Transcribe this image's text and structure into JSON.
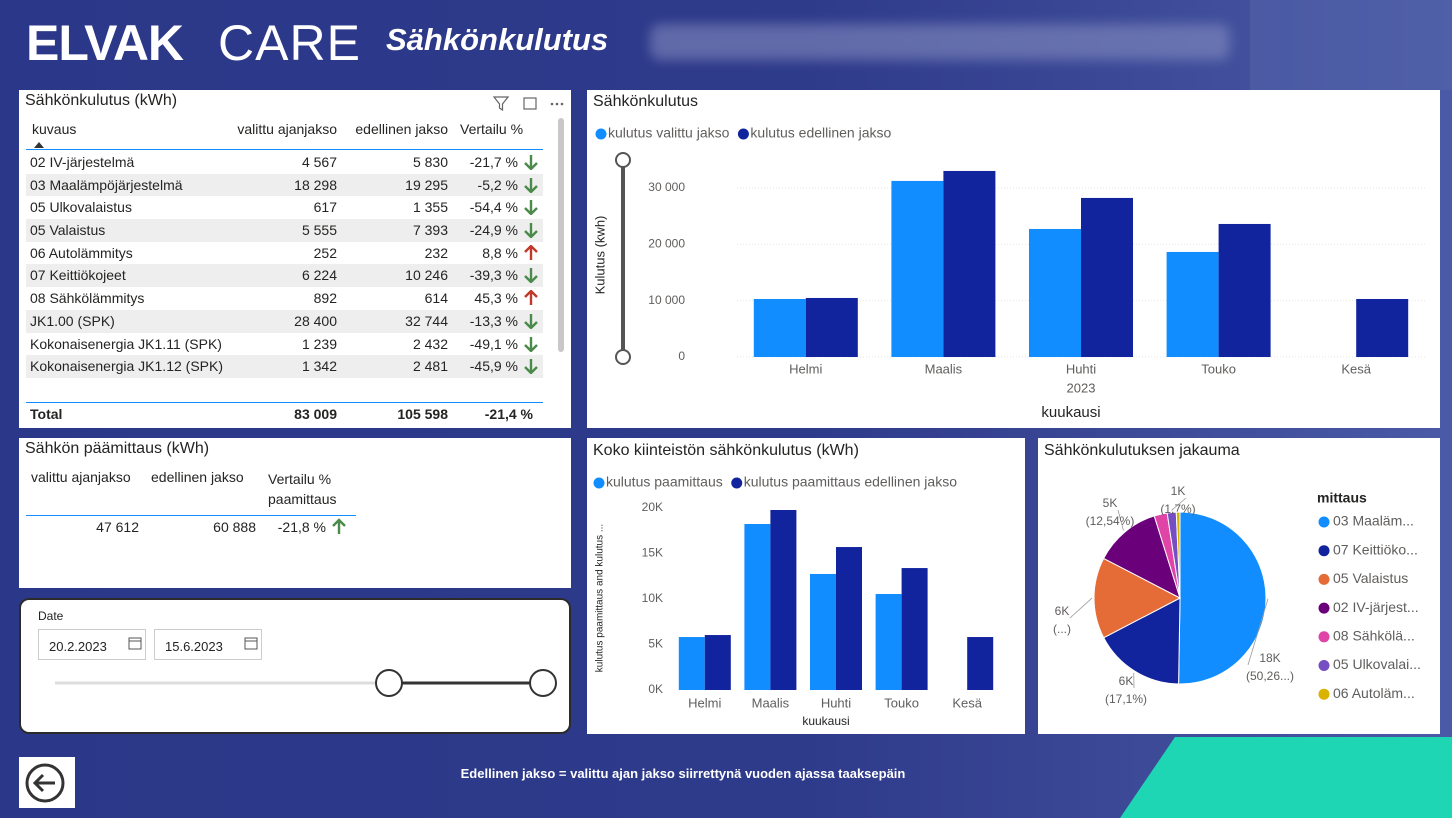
{
  "header": {
    "brand": "ELVAK",
    "product": "CARE",
    "title": "Sähkönkulutus"
  },
  "consumption_table": {
    "title": "Sähkönkulutus (kWh)",
    "columns": [
      "kuvaus",
      "valittu ajanjakso",
      "edellinen jakso",
      "Vertailu %"
    ],
    "rows": [
      [
        "02 IV-järjestelmä",
        "4 567",
        "5 830",
        "-21,7 %"
      ],
      [
        "03 Maalämpöjärjestelmä",
        "18 298",
        "19 295",
        "-5,2 %"
      ],
      [
        "05 Ulkovalaistus",
        "617",
        "1 355",
        "-54,4 %"
      ],
      [
        "05 Valaistus",
        "5 555",
        "7 393",
        "-24,9 %"
      ],
      [
        "06 Autolämmitys",
        "252",
        "232",
        "8,8 %"
      ],
      [
        "07 Keittiökojeet",
        "6 224",
        "10 246",
        "-39,3 %"
      ],
      [
        "08 Sähkölämmitys",
        "892",
        "614",
        "45,3 %"
      ],
      [
        "JK1.00 (SPK)",
        "28 400",
        "32 744",
        "-13,3 %"
      ],
      [
        "Kokonaisenergia JK1.11 (SPK)",
        "1 239",
        "2 432",
        "-49,1 %"
      ],
      [
        "Kokonaisenergia JK1.12 (SPK)",
        "1 342",
        "2 481",
        "-45,9 %"
      ]
    ],
    "total": [
      "Total",
      "83 009",
      "105 598",
      "-21,4 %"
    ]
  },
  "main_meter_table": {
    "title": "Sähkön päämittaus (kWh)",
    "columns": [
      "valittu ajanjakso",
      "edellinen jakso",
      "Vertailu % paamittaus"
    ],
    "row": [
      "47 612",
      "60 888",
      "-21,8 %"
    ]
  },
  "date_slicer": {
    "label": "Date",
    "start": "20.2.2023",
    "end": "15.6.2023"
  },
  "footer": "Edellinen jakso = valittu ajan jakso siirrettynä vuoden ajassa taaksepäin",
  "chart_data": [
    {
      "type": "bar",
      "title": "Sähkönkulutus",
      "categories": [
        "Helmi",
        "Maalis",
        "Huhti",
        "Touko",
        "Kesä"
      ],
      "x_group": "2023",
      "xlabel": "kuukausi",
      "ylabel": "Kulutus (kwh)",
      "series": [
        {
          "name": "kulutus valittu jakso",
          "color": "#118dff",
          "values": [
            10300,
            31260,
            22730,
            18650,
            null
          ]
        },
        {
          "name": "kulutus edellinen jakso",
          "color": "#12239e",
          "values": [
            10480,
            33030,
            28240,
            23620,
            10300
          ]
        }
      ],
      "ylim": [
        0,
        34000
      ],
      "yticks": [
        0,
        {
          "value": 10000,
          "label": "10 000"
        },
        {
          "value": 20000,
          "label": "20 000"
        },
        {
          "value": 30000,
          "label": "30 000"
        }
      ],
      "grid": true,
      "legend": "top-left"
    },
    {
      "type": "bar",
      "title": "Koko kiinteistön sähkönkulutus (kWh)",
      "categories": [
        "Helmi",
        "Maalis",
        "Huhti",
        "Touko",
        "Kesä"
      ],
      "xlabel": "kuukausi",
      "ylabel": "kulutus paamittaus and kulutus ...",
      "series": [
        {
          "name": "kulutus paamittaus",
          "color": "#118dff",
          "values": [
            5820,
            18240,
            12750,
            10550,
            null
          ]
        },
        {
          "name": "kulutus paamittaus edellinen jakso",
          "color": "#12239e",
          "values": [
            6040,
            19780,
            15710,
            13400,
            5820
          ]
        }
      ],
      "ylim": [
        0,
        20000
      ],
      "yticks": [
        {
          "value": 0,
          "label": "0K"
        },
        {
          "value": 5000,
          "label": "5K"
        },
        {
          "value": 10000,
          "label": "10K"
        },
        {
          "value": 15000,
          "label": "15K"
        },
        {
          "value": 20000,
          "label": "20K"
        }
      ],
      "grid": false,
      "legend": "top-left"
    },
    {
      "type": "pie",
      "title": "Sähkönkulutuksen jakauma",
      "legend_title": "mittaus",
      "categories": [
        "03 Maaläm...",
        "07 Keittiöko...",
        "05 Valaistus",
        "02 IV-järjest...",
        "08 Sähkölä...",
        "05 Ulkovalai...",
        "06 Autoläm..."
      ],
      "values": [
        18298,
        6224,
        5555,
        4567,
        892,
        617,
        252
      ],
      "value_labels": [
        [
          "18K",
          "(50,26...)"
        ],
        [
          "6K",
          "(17,1%)"
        ],
        [
          "6K",
          "(...)"
        ],
        [
          "5K",
          "(12,54%)"
        ],
        null,
        [
          "1K",
          "(1,7%)"
        ],
        null
      ],
      "colors": [
        "#118dff",
        "#12239e",
        "#e66c37",
        "#6b007b",
        "#e044a7",
        "#744ec2",
        "#d9b300"
      ],
      "legend": "right"
    }
  ]
}
